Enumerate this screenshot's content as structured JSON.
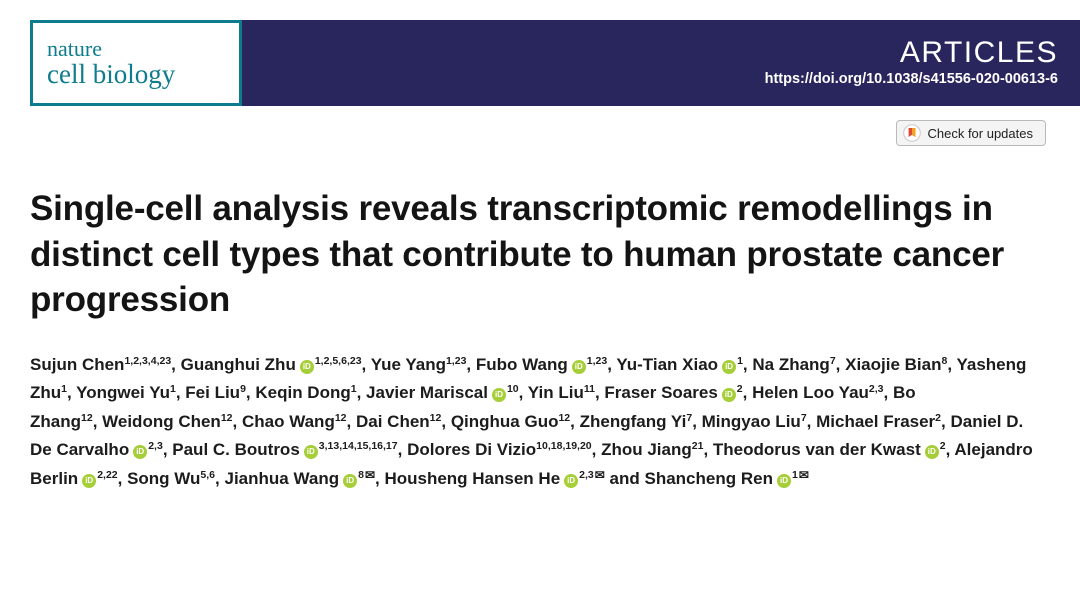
{
  "header": {
    "logo_line1": "nature",
    "logo_line2": "cell biology",
    "section_label": "ARTICLES",
    "doi": "https://doi.org/10.1038/s41556-020-00613-6",
    "banner_color": "#29265e",
    "logo_color": "#0e7c8c"
  },
  "badge": {
    "label": "Check for updates"
  },
  "article": {
    "title": "Single-cell analysis reveals transcriptomic remodellings in distinct cell types that contribute to human prostate cancer progression"
  },
  "authors": {
    "separator": ", ",
    "final_separator": " and ",
    "orcid_glyph": "iD",
    "mail_glyph": "✉",
    "orcid_color": "#a6ce39",
    "list": [
      {
        "name": "Sujun Chen",
        "orcid": false,
        "sup": "1,2,3,4,23",
        "mail": false
      },
      {
        "name": "Guanghui Zhu",
        "orcid": true,
        "sup": "1,2,5,6,23",
        "mail": false
      },
      {
        "name": "Yue Yang",
        "orcid": false,
        "sup": "1,23",
        "mail": false
      },
      {
        "name": "Fubo Wang",
        "orcid": true,
        "sup": "1,23",
        "mail": false
      },
      {
        "name": "Yu-Tian Xiao",
        "orcid": true,
        "sup": "1",
        "mail": false
      },
      {
        "name": "Na Zhang",
        "orcid": false,
        "sup": "7",
        "mail": false
      },
      {
        "name": "Xiaojie Bian",
        "orcid": false,
        "sup": "8",
        "mail": false
      },
      {
        "name": "Yasheng Zhu",
        "orcid": false,
        "sup": "1",
        "mail": false
      },
      {
        "name": "Yongwei Yu",
        "orcid": false,
        "sup": "1",
        "mail": false
      },
      {
        "name": "Fei Liu",
        "orcid": false,
        "sup": "9",
        "mail": false
      },
      {
        "name": "Keqin Dong",
        "orcid": false,
        "sup": "1",
        "mail": false
      },
      {
        "name": "Javier Mariscal",
        "orcid": true,
        "sup": "10",
        "mail": false
      },
      {
        "name": "Yin Liu",
        "orcid": false,
        "sup": "11",
        "mail": false
      },
      {
        "name": "Fraser Soares",
        "orcid": true,
        "sup": "2",
        "mail": false
      },
      {
        "name": "Helen Loo Yau",
        "orcid": false,
        "sup": "2,3",
        "mail": false
      },
      {
        "name": "Bo Zhang",
        "orcid": false,
        "sup": "12",
        "mail": false
      },
      {
        "name": "Weidong Chen",
        "orcid": false,
        "sup": "12",
        "mail": false
      },
      {
        "name": "Chao Wang",
        "orcid": false,
        "sup": "12",
        "mail": false
      },
      {
        "name": "Dai Chen",
        "orcid": false,
        "sup": "12",
        "mail": false
      },
      {
        "name": "Qinghua Guo",
        "orcid": false,
        "sup": "12",
        "mail": false
      },
      {
        "name": "Zhengfang Yi",
        "orcid": false,
        "sup": "7",
        "mail": false
      },
      {
        "name": "Mingyao Liu",
        "orcid": false,
        "sup": "7",
        "mail": false
      },
      {
        "name": "Michael Fraser",
        "orcid": false,
        "sup": "2",
        "mail": false
      },
      {
        "name": "Daniel D. De Carvalho",
        "orcid": true,
        "sup": "2,3",
        "mail": false
      },
      {
        "name": "Paul C. Boutros",
        "orcid": true,
        "sup": "3,13,14,15,16,17",
        "mail": false
      },
      {
        "name": "Dolores Di Vizio",
        "orcid": false,
        "sup": "10,18,19,20",
        "mail": false
      },
      {
        "name": "Zhou Jiang",
        "orcid": false,
        "sup": "21",
        "mail": false
      },
      {
        "name": "Theodorus van der Kwast",
        "orcid": true,
        "sup": "2",
        "mail": false
      },
      {
        "name": "Alejandro Berlin",
        "orcid": true,
        "sup": "2,22",
        "mail": false
      },
      {
        "name": "Song Wu",
        "orcid": false,
        "sup": "5,6",
        "mail": false
      },
      {
        "name": "Jianhua Wang",
        "orcid": true,
        "sup": "8",
        "mail": true
      },
      {
        "name": "Housheng Hansen He",
        "orcid": true,
        "sup": "2,3",
        "mail": true
      },
      {
        "name": "Shancheng Ren",
        "orcid": true,
        "sup": "1",
        "mail": true
      }
    ]
  }
}
